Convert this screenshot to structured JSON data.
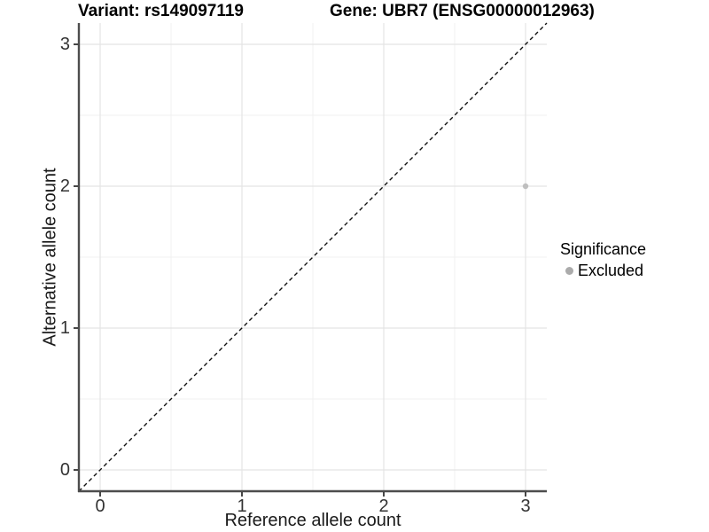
{
  "titles": {
    "variant": "Variant: rs149097119",
    "gene": "Gene: UBR7 (ENSG00000012963)"
  },
  "axes": {
    "x_label": "Reference allele count",
    "y_label": "Alternative allele count"
  },
  "legend": {
    "title": "Significance",
    "items": [
      {
        "label": "Excluded",
        "color": "#b6b6b6"
      }
    ]
  },
  "colors": {
    "background": "#ffffff",
    "point": "#bfbfbf",
    "legend_key": "#ababab",
    "grid_major": "#e4e4e4",
    "grid_minor": "#f1f1f1",
    "axis_line": "#4d4d4d",
    "tick_mark": "#333333",
    "tick_text": "#333333",
    "reference_line": "#111111"
  },
  "chart_data": {
    "type": "scatter",
    "title": "Variant: rs149097119 | Gene: UBR7 (ENSG00000012963)",
    "xlabel": "Reference allele count",
    "ylabel": "Alternative allele count",
    "xlim": [
      -0.15,
      3.15
    ],
    "ylim": [
      -0.15,
      3.15
    ],
    "x_ticks": [
      0,
      1,
      2,
      3
    ],
    "y_ticks": [
      0,
      1,
      2,
      3
    ],
    "x_minor_ticks": [
      0.5,
      1.5,
      2.5
    ],
    "y_minor_ticks": [
      0.5,
      1.5,
      2.5
    ],
    "grid": true,
    "legend_position": "right",
    "legend_title": "Significance",
    "series": [
      {
        "name": "Excluded",
        "type": "scatter",
        "color": "#bfbfbf",
        "points": [
          [
            3,
            2
          ]
        ]
      }
    ],
    "reference_line": {
      "kind": "identity y=x",
      "style": "dashed",
      "color": "#111111"
    }
  }
}
